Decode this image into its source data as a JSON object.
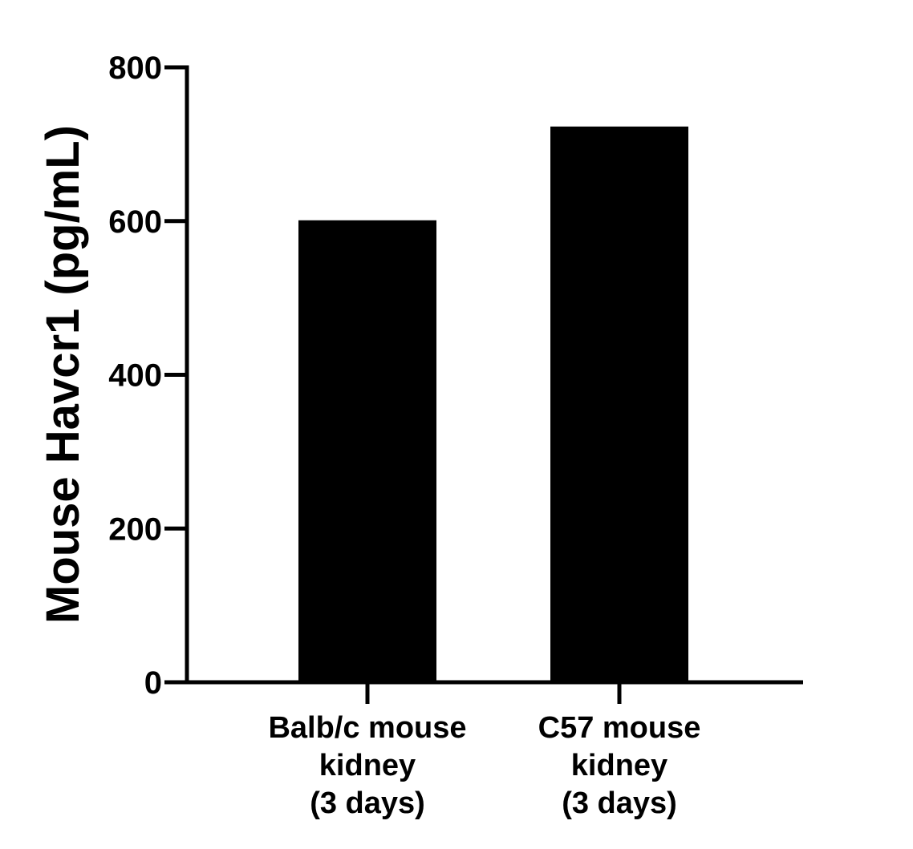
{
  "chart_data": {
    "type": "bar",
    "categories": [
      [
        "Balb/c mouse",
        "kidney",
        "(3 days)"
      ],
      [
        "C57 mouse",
        "kidney",
        "(3 days)"
      ]
    ],
    "values": [
      601,
      723
    ],
    "title": "",
    "xlabel": "",
    "ylabel": "Mouse Havcr1 (pg/mL)",
    "ylim": [
      0,
      800
    ],
    "yticks": [
      "0",
      "200",
      "400",
      "600",
      "800"
    ],
    "grid": false,
    "bar_color": "#000000"
  }
}
